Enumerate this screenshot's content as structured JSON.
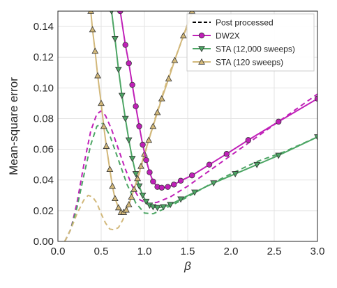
{
  "chart_data": {
    "type": "line",
    "xlabel": "β",
    "ylabel": "Mean-square error",
    "xlim": [
      0.0,
      3.0
    ],
    "ylim": [
      0.0,
      0.15
    ],
    "xticks": [
      "0.0",
      "0.5",
      "1.0",
      "1.5",
      "2.0",
      "2.5",
      "3.0"
    ],
    "yticks": [
      "0.00",
      "0.02",
      "0.04",
      "0.06",
      "0.08",
      "0.10",
      "0.12",
      "0.14"
    ],
    "grid": true,
    "legend_position": "top-right",
    "legend": [
      {
        "label": "Post processed",
        "style": "dashed",
        "color": "#000000",
        "marker": "none"
      },
      {
        "label": "DW2X",
        "style": "solid",
        "color": "#c020b8",
        "marker": "circle"
      },
      {
        "label": "STA (12,000 sweeps)",
        "style": "solid",
        "color": "#4ca564",
        "marker": "triangle-down"
      },
      {
        "label": "STA (120 sweeps)",
        "style": "solid",
        "color": "#d2b87a",
        "marker": "triangle-up"
      }
    ],
    "series": [
      {
        "name": "DW2X",
        "color": "#c020b8",
        "marker": "circle",
        "style": "solid",
        "x": [
          0.72,
          0.78,
          0.82,
          0.86,
          0.9,
          0.94,
          0.98,
          1.02,
          1.06,
          1.1,
          1.15,
          1.2,
          1.27,
          1.34,
          1.42,
          1.55,
          1.75,
          1.95,
          2.2,
          2.55,
          3.0
        ],
        "y": [
          0.15,
          0.128,
          0.116,
          0.102,
          0.088,
          0.075,
          0.063,
          0.053,
          0.045,
          0.039,
          0.0355,
          0.035,
          0.0355,
          0.037,
          0.0395,
          0.043,
          0.05,
          0.057,
          0.066,
          0.078,
          0.093
        ]
      },
      {
        "name": "DW2X post processed",
        "color": "#c020b8",
        "marker": "none",
        "style": "dashed",
        "x": [
          0.08,
          0.15,
          0.22,
          0.3,
          0.38,
          0.45,
          0.5,
          0.55,
          0.62,
          0.7,
          0.78,
          0.86,
          0.95,
          1.05,
          1.15,
          1.3,
          1.5,
          1.75,
          2.0,
          2.3,
          2.6,
          3.0
        ],
        "y": [
          0.0,
          0.008,
          0.025,
          0.05,
          0.072,
          0.083,
          0.085,
          0.082,
          0.073,
          0.06,
          0.047,
          0.036,
          0.027,
          0.0245,
          0.0255,
          0.029,
          0.036,
          0.046,
          0.056,
          0.068,
          0.08,
          0.096
        ]
      },
      {
        "name": "STA (12,000 sweeps)",
        "color": "#4ca564",
        "marker": "triangle-down",
        "style": "solid",
        "x": [
          0.62,
          0.66,
          0.7,
          0.74,
          0.78,
          0.82,
          0.86,
          0.9,
          0.94,
          0.98,
          1.02,
          1.06,
          1.1,
          1.15,
          1.22,
          1.3,
          1.42,
          1.58,
          1.8,
          2.05,
          2.3,
          2.55,
          3.0
        ],
        "y": [
          0.15,
          0.132,
          0.112,
          0.095,
          0.08,
          0.066,
          0.054,
          0.044,
          0.036,
          0.03,
          0.026,
          0.0235,
          0.0225,
          0.022,
          0.0225,
          0.024,
          0.0275,
          0.032,
          0.038,
          0.044,
          0.05,
          0.056,
          0.068
        ]
      },
      {
        "name": "STA (12,000 sweeps) post processed",
        "color": "#4ca564",
        "marker": "none",
        "style": "dashed",
        "x": [
          0.08,
          0.15,
          0.22,
          0.3,
          0.38,
          0.45,
          0.52,
          0.6,
          0.7,
          0.8,
          0.9,
          1.0,
          1.1,
          1.2,
          1.35,
          1.5,
          1.75,
          2.0,
          2.3,
          2.6,
          3.0
        ],
        "y": [
          0.0,
          0.008,
          0.022,
          0.043,
          0.063,
          0.075,
          0.077,
          0.069,
          0.053,
          0.037,
          0.025,
          0.0185,
          0.018,
          0.0205,
          0.0245,
          0.029,
          0.037,
          0.044,
          0.052,
          0.058,
          0.068
        ]
      },
      {
        "name": "STA (120 sweeps)",
        "color": "#d2b87a",
        "marker": "triangle-up",
        "style": "solid",
        "x": [
          0.38,
          0.4,
          0.43,
          0.46,
          0.5,
          0.53,
          0.56,
          0.6,
          0.63,
          0.66,
          0.7,
          0.73,
          0.76,
          0.79,
          0.82,
          0.85,
          0.88,
          0.92,
          0.96,
          1.0,
          1.05,
          1.1,
          1.15,
          1.2,
          1.28,
          1.35,
          1.45,
          1.55
        ],
        "y": [
          0.15,
          0.138,
          0.124,
          0.108,
          0.09,
          0.075,
          0.062,
          0.047,
          0.036,
          0.028,
          0.022,
          0.019,
          0.019,
          0.0205,
          0.024,
          0.029,
          0.034,
          0.041,
          0.049,
          0.057,
          0.066,
          0.075,
          0.084,
          0.093,
          0.106,
          0.118,
          0.134,
          0.15
        ]
      },
      {
        "name": "STA (120 sweeps) post processed",
        "color": "#d2b87a",
        "marker": "none",
        "style": "dashed",
        "x": [
          0.08,
          0.15,
          0.22,
          0.3,
          0.35,
          0.4,
          0.45,
          0.5,
          0.55,
          0.6,
          0.65,
          0.7,
          0.75,
          0.8,
          0.85,
          0.9,
          0.95,
          1.0,
          1.05,
          1.1,
          1.2,
          1.3,
          1.4,
          1.5,
          1.55
        ],
        "y": [
          0.0,
          0.008,
          0.018,
          0.027,
          0.03,
          0.029,
          0.025,
          0.018,
          0.012,
          0.008,
          0.0075,
          0.009,
          0.014,
          0.021,
          0.029,
          0.037,
          0.046,
          0.056,
          0.066,
          0.076,
          0.094,
          0.111,
          0.126,
          0.141,
          0.148
        ]
      }
    ]
  }
}
